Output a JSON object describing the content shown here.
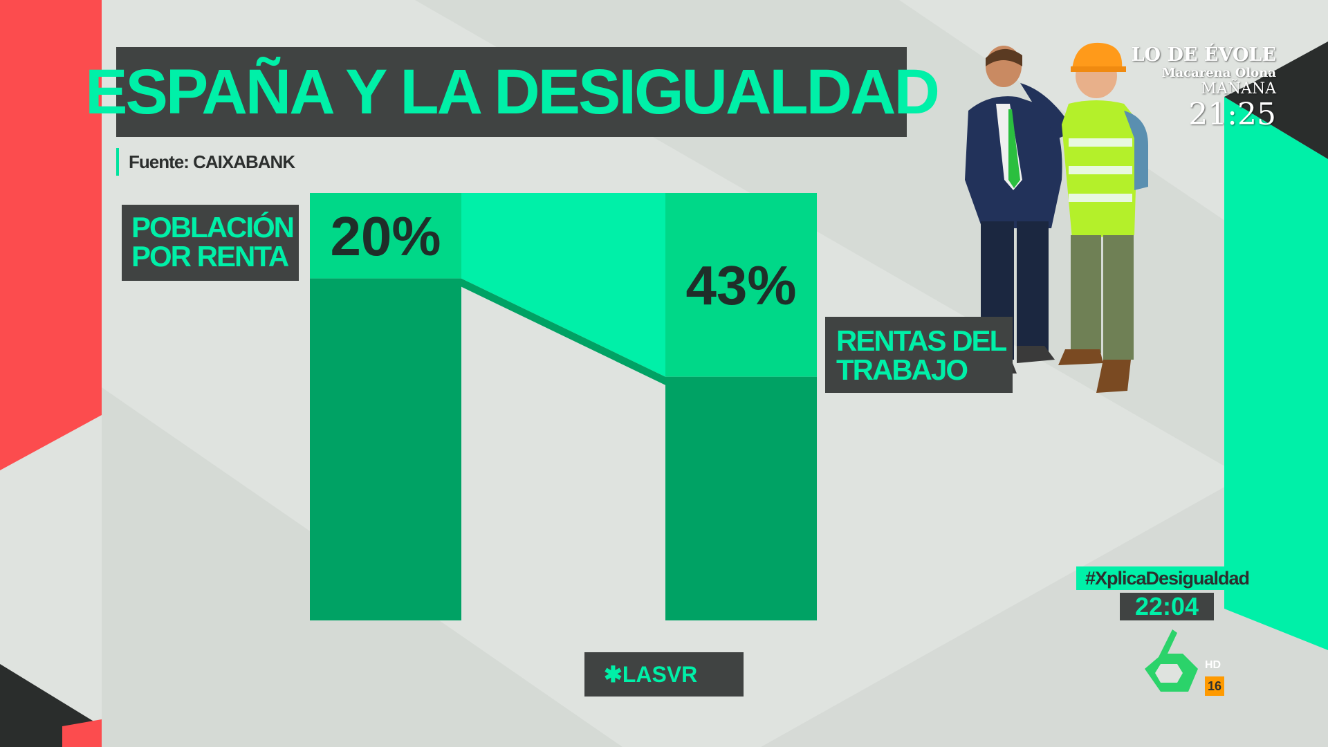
{
  "title": "ESPAÑA Y LA DESIGUALDAD",
  "source": "Fuente: CAIXABANK",
  "labels": {
    "left_line1": "POBLACIÓN",
    "left_line2": "POR RENTA",
    "right_line1": "RENTAS DEL",
    "right_line2": "TRABAJO"
  },
  "chart_data": {
    "type": "bar",
    "categories": [
      "POBLACIÓN POR RENTA",
      "RENTAS DEL TRABAJO"
    ],
    "values": [
      20,
      43
    ],
    "value_labels": [
      "20%",
      "43%"
    ],
    "ylim": [
      0,
      100
    ]
  },
  "colors": {
    "accent": "#00f0a8",
    "bar_dark": "#00a264",
    "bar_top": "#00d888",
    "title_bg": "#404342",
    "red": "#fc4c4e"
  },
  "promo": {
    "show": "LO DE ÉVOLE",
    "guest": "Macarena Olona",
    "day": "MAÑANA",
    "time": "21:25"
  },
  "hashtag": "#XplicaDesigualdad",
  "clock": "22:04",
  "program_tag": "✱LASVR",
  "channel": {
    "logo_icon": "la-sexta-logo-icon",
    "hd": "HD",
    "age_rating": "16"
  }
}
